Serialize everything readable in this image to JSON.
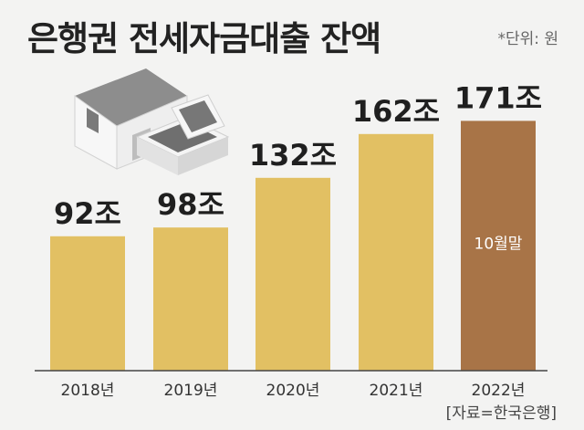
{
  "title": "은행권 전세자금대출 잔액",
  "unit_note": "*단위: 원",
  "source": "[자료=한국은행]",
  "colors": {
    "bar": "#e2c063",
    "highlight_bar": "#a87447",
    "background": "#f3f3f2",
    "axis": "#444444"
  },
  "chart_data": {
    "type": "bar",
    "categories": [
      "2018년",
      "2019년",
      "2020년",
      "2021년",
      "2022년"
    ],
    "values": [
      92,
      98,
      132,
      162,
      171
    ],
    "value_labels": [
      "92조",
      "98조",
      "132조",
      "162조",
      "171조"
    ],
    "highlight_index": 4,
    "bar_note": "10월말",
    "unit_suffix": "조",
    "ylim": [
      0,
      190
    ],
    "grid": false,
    "legend": "none"
  }
}
